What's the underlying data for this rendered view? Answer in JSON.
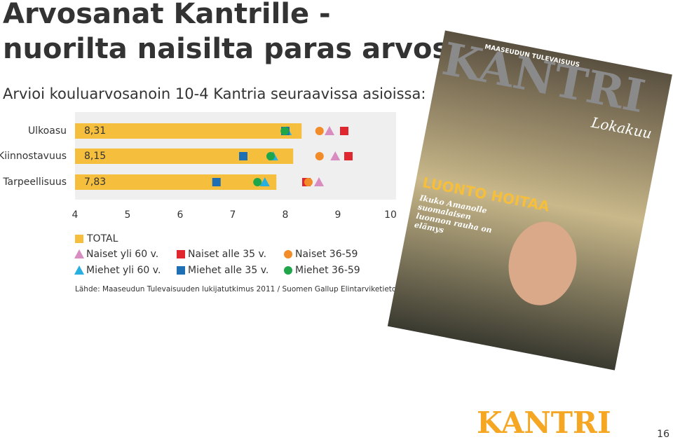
{
  "chart_data": {
    "type": "bar",
    "title": "Arvosanat Kantrille - nuorilta naisilta paras arvosana",
    "subtitle": "Arvioi kouluarvosanoin 10-4 Kantria seuraavissa asioissa:",
    "categories": [
      "Ulkoasu",
      "Kiinnostavuus",
      "Tarpeellisuus"
    ],
    "total_name": "TOTAL",
    "values": [
      8.31,
      8.15,
      7.83
    ],
    "value_labels": [
      "8,31",
      "8,15",
      "7,83"
    ],
    "color": "#f5be3c",
    "xlim": [
      4,
      10
    ],
    "xticks": [
      4,
      5,
      6,
      7,
      8,
      9,
      10
    ],
    "series": [
      {
        "name": "Naiset yli 60 v.",
        "color": "#d98cc0",
        "marker": "triangle",
        "values": [
          8.84,
          8.95,
          8.64
        ]
      },
      {
        "name": "Naiset alle 35 v.",
        "color": "#e0262f",
        "marker": "square",
        "values": [
          9.12,
          9.2,
          8.4
        ]
      },
      {
        "name": "Naiset 36-59",
        "color": "#f28c28",
        "marker": "circle",
        "values": [
          8.65,
          8.65,
          8.44
        ]
      },
      {
        "name": "Miehet yli 60 v.",
        "color": "#29aee0",
        "marker": "triangle",
        "values": [
          8.03,
          7.77,
          7.61
        ]
      },
      {
        "name": "Miehet alle 35 v.",
        "color": "#1f6fb5",
        "marker": "square",
        "values": [
          8.0,
          7.2,
          6.69
        ]
      },
      {
        "name": "Miehet 36-59",
        "color": "#1fa64a",
        "marker": "circle",
        "values": [
          7.99,
          7.72,
          7.47
        ]
      }
    ],
    "source": "Lähde: Maaseudun Tulevaisuuden lukijatutkimus 2011 / Suomen Gallup Elintarviketieto"
  },
  "cover": {
    "publisher": "MAASEUDUN TULEVAISUUS",
    "logo": "KANTRI",
    "issue": "Lokakuu",
    "headline": "LUONTO HOITAA",
    "caption": "Ikuko Amanolle suomalaisen luonnon rauha on elämys"
  },
  "footer": {
    "logo": "KANTRI",
    "page": "16"
  }
}
